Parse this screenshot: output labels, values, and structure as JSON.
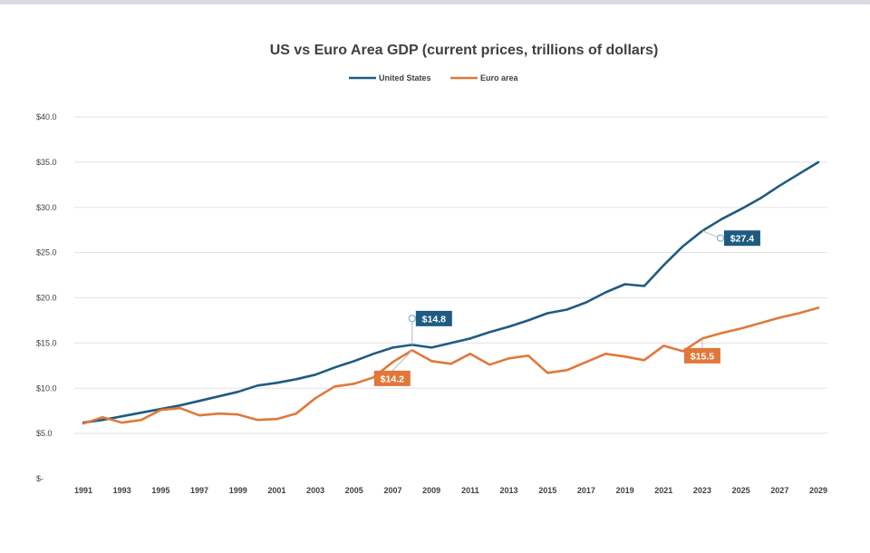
{
  "chart_data": {
    "type": "line",
    "title": "US vs Euro Area GDP (current prices, trillions of dollars)",
    "xlabel": "",
    "ylabel": "",
    "x": [
      1991,
      1992,
      1993,
      1994,
      1995,
      1996,
      1997,
      1998,
      1999,
      2000,
      2001,
      2002,
      2003,
      2004,
      2005,
      2006,
      2007,
      2008,
      2009,
      2010,
      2011,
      2012,
      2013,
      2014,
      2015,
      2016,
      2017,
      2018,
      2019,
      2020,
      2021,
      2022,
      2023,
      2024,
      2025,
      2026,
      2027,
      2028,
      2029
    ],
    "x_tick_labels": [
      "1991",
      "1993",
      "1995",
      "1997",
      "1999",
      "2001",
      "2003",
      "2005",
      "2007",
      "2009",
      "2011",
      "2013",
      "2015",
      "2017",
      "2019",
      "2021",
      "2023",
      "2025",
      "2027",
      "2029"
    ],
    "y_tick_labels": [
      "$-",
      "$5.0",
      "$10.0",
      "$15.0",
      "$20.0",
      "$25.0",
      "$30.0",
      "$35.0",
      "$40.0"
    ],
    "ylim": [
      0,
      40
    ],
    "grid": "horizontal",
    "legend_position": "top-center",
    "series": [
      {
        "name": "United States",
        "color": "#1f5b80",
        "values": [
          6.2,
          6.5,
          6.9,
          7.3,
          7.7,
          8.1,
          8.6,
          9.1,
          9.6,
          10.3,
          10.6,
          11.0,
          11.5,
          12.3,
          13.0,
          13.8,
          14.5,
          14.8,
          14.5,
          15.0,
          15.5,
          16.2,
          16.8,
          17.5,
          18.3,
          18.7,
          19.5,
          20.6,
          21.5,
          21.3,
          23.6,
          25.7,
          27.4,
          28.7,
          29.8,
          31.0,
          32.4,
          33.7,
          35.0
        ]
      },
      {
        "name": "Euro area",
        "color": "#e0783a",
        "values": [
          6.1,
          6.8,
          6.2,
          6.5,
          7.6,
          7.8,
          7.0,
          7.2,
          7.1,
          6.5,
          6.6,
          7.2,
          8.9,
          10.2,
          10.5,
          11.2,
          12.9,
          14.2,
          13.0,
          12.7,
          13.8,
          12.6,
          13.3,
          13.6,
          11.7,
          12.0,
          12.9,
          13.8,
          13.5,
          13.1,
          14.7,
          14.1,
          15.5,
          16.1,
          16.6,
          17.2,
          17.8,
          18.3,
          18.9
        ]
      }
    ],
    "annotations": [
      {
        "label": "$14.8",
        "x": 2008,
        "y": 14.8,
        "series": "United States"
      },
      {
        "label": "$14.2",
        "x": 2008,
        "y": 14.2,
        "series": "Euro area"
      },
      {
        "label": "$27.4",
        "x": 2023,
        "y": 27.4,
        "series": "United States"
      },
      {
        "label": "$15.5",
        "x": 2023,
        "y": 15.5,
        "series": "Euro area"
      }
    ]
  }
}
